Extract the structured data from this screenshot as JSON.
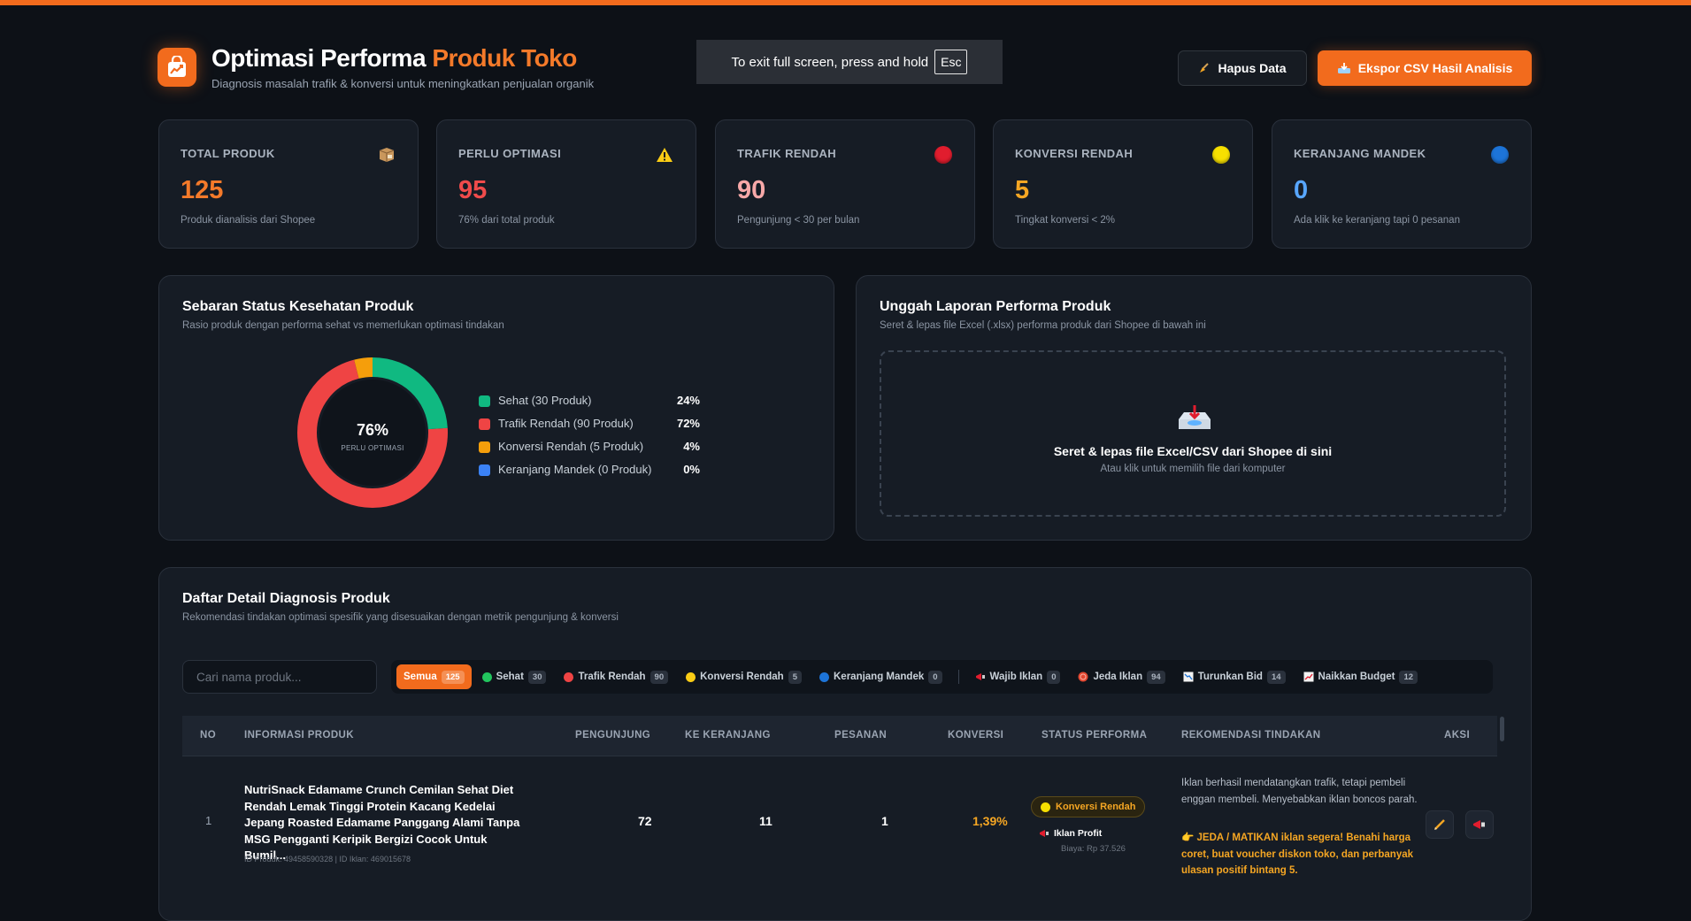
{
  "header": {
    "title_main": "Optimasi Performa ",
    "title_accent": "Produk Toko",
    "subtitle": "Diagnosis masalah trafik & konversi untuk meningkatkan penjualan organik",
    "logo_icon": "shopping-bag-chart-icon"
  },
  "fullscreen_notice": {
    "text": "To exit full screen, press and hold",
    "key": "Esc"
  },
  "actions": {
    "clear_label": "Hapus Data",
    "clear_icon": "broom-icon",
    "export_label": "Ekspor CSV Hasil Analisis",
    "export_icon": "inbox-tray-icon"
  },
  "stats": [
    {
      "label": "TOTAL PRODUK",
      "value": "125",
      "desc": "Produk dianalisis dari Shopee",
      "icon": "package-icon",
      "color": "#f47a2a"
    },
    {
      "label": "PERLU OPTIMASI",
      "value": "95",
      "desc": "76% dari total produk",
      "icon": "warning-icon",
      "color": "#f04b4b"
    },
    {
      "label": "TRAFIK RENDAH",
      "value": "90",
      "desc": "Pengunjung < 30 per bulan",
      "icon": "red-circle-icon",
      "color": "#f7a8a8"
    },
    {
      "label": "KONVERSI RENDAH",
      "value": "5",
      "desc": "Tingkat konversi < 2%",
      "icon": "yellow-circle-icon",
      "color": "#f5a623"
    },
    {
      "label": "KERANJANG MANDEK",
      "value": "0",
      "desc": "Ada klik ke keranjang tapi 0 pesanan",
      "icon": "blue-circle-icon",
      "color": "#58a6ff"
    }
  ],
  "health": {
    "title": "Sebaran Status Kesehatan Produk",
    "subtitle": "Rasio produk dengan performa sehat vs memerlukan optimasi tindakan",
    "center_value": "76%",
    "center_caption": "PERLU OPTIMASI",
    "legend": [
      {
        "name": "Sehat (30 Produk)",
        "pct": "24%",
        "value": 24,
        "color": "#10b981"
      },
      {
        "name": "Trafik Rendah (90 Produk)",
        "pct": "72%",
        "value": 72,
        "color": "#ef4444"
      },
      {
        "name": "Konversi Rendah (5 Produk)",
        "pct": "4%",
        "value": 4,
        "color": "#f59e0b"
      },
      {
        "name": "Keranjang Mandek (0 Produk)",
        "pct": "0%",
        "value": 0,
        "color": "#3b82f6"
      }
    ]
  },
  "upload": {
    "title": "Unggah Laporan Performa Produk",
    "subtitle": "Seret & lepas file Excel (.xlsx) performa produk dari Shopee di bawah ini",
    "drop_title": "Seret & lepas file Excel/CSV dari Shopee di sini",
    "drop_sub": "Atau klik untuk memilih file dari komputer",
    "drop_icon": "inbox-tray-icon"
  },
  "list": {
    "title": "Daftar Detail Diagnosis Produk",
    "subtitle": "Rekomendasi tindakan optimasi spesifik yang disesuaikan dengan metrik pengunjung & konversi",
    "search_placeholder": "Cari nama produk...",
    "filters": [
      {
        "label": "Semua",
        "count": "125",
        "active": true
      },
      {
        "label": "Sehat",
        "count": "30",
        "dot": "#22c55e"
      },
      {
        "label": "Trafik Rendah",
        "count": "90",
        "dot": "#ef4444"
      },
      {
        "label": "Konversi Rendah",
        "count": "5",
        "dot": "#facc15"
      },
      {
        "label": "Keranjang Mandek",
        "count": "0",
        "dot": "#1d74d8"
      }
    ],
    "filters_ads": [
      {
        "label": "Wajib Iklan",
        "count": "0",
        "icon": "megaphone-icon"
      },
      {
        "label": "Jeda Iklan",
        "count": "94",
        "icon": "stop-circle-icon"
      },
      {
        "label": "Turunkan Bid",
        "count": "14",
        "icon": "chart-down-icon"
      },
      {
        "label": "Naikkan Budget",
        "count": "12",
        "icon": "chart-up-icon"
      }
    ],
    "columns": {
      "no": "NO",
      "info": "INFORMASI PRODUK",
      "visitors": "PENGUNJUNG",
      "cart": "KE KERANJANG",
      "orders": "PESANAN",
      "conversion": "KONVERSI",
      "status": "STATUS PERFORMA",
      "recommendation": "REKOMENDASI TINDAKAN",
      "action": "AKSI"
    },
    "rows": [
      {
        "no": "1",
        "name": "NutriSnack Edamame Crunch Cemilan Sehat Diet Rendah Lemak Tinggi Protein Kacang Kedelai Jepang Roasted Edamame Panggang Alami Tanpa MSG Pengganti Keripik Bergizi Cocok Untuk Bumil...",
        "ids": "ID Produk: 49458590328 | ID Iklan: 469015678",
        "visitors": "72",
        "cart": "11",
        "orders": "1",
        "conversion": "1,39%",
        "status": "Konversi Rendah",
        "ads_tag": "Iklan Profit",
        "cost": "Biaya: Rp 37.526",
        "recommendation": "Iklan berhasil mendatangkan trafik, tetapi pembeli enggan membeli. Menyebabkan iklan boncos parah.",
        "action_text": "👉 JEDA / MATIKAN iklan segera! Benahi harga coret, buat voucher diskon toko, dan perbanyak ulasan positif bintang 5."
      }
    ]
  }
}
